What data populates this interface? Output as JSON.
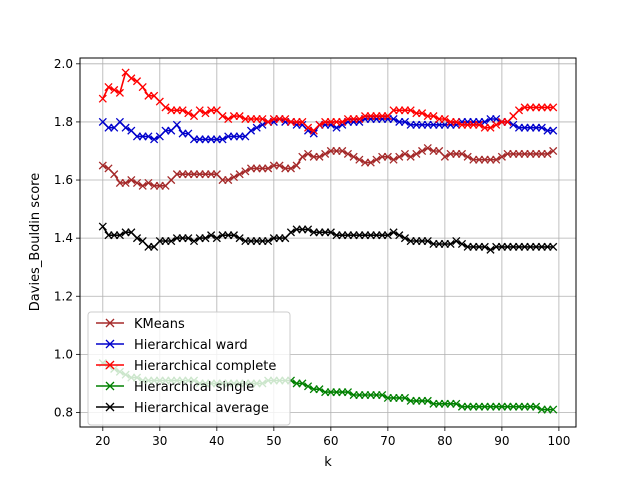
{
  "chart_data": {
    "type": "line",
    "title": "",
    "xlabel": "k",
    "ylabel": "Davies_Bouldin score",
    "xlim": [
      16,
      103
    ],
    "ylim": [
      0.75,
      2.02
    ],
    "xticks": [
      20,
      30,
      40,
      50,
      60,
      70,
      80,
      90,
      100
    ],
    "yticks": [
      0.8,
      1.0,
      1.2,
      1.4,
      1.6,
      1.8,
      2.0
    ],
    "xtick_labels": [
      "20",
      "30",
      "40",
      "50",
      "60",
      "70",
      "80",
      "90",
      "100"
    ],
    "ytick_labels": [
      "0.8",
      "1.0",
      "1.2",
      "1.4",
      "1.6",
      "1.8",
      "2.0"
    ],
    "grid": true,
    "marker": "x",
    "legend_position": "lower-left",
    "x_start": 20,
    "x_end": 99,
    "series": [
      {
        "name": "KMeans",
        "color": "#a52a2a",
        "values": [
          1.65,
          1.64,
          1.62,
          1.59,
          1.59,
          1.6,
          1.59,
          1.58,
          1.59,
          1.58,
          1.58,
          1.58,
          1.6,
          1.62,
          1.62,
          1.62,
          1.62,
          1.62,
          1.62,
          1.62,
          1.62,
          1.6,
          1.6,
          1.61,
          1.62,
          1.63,
          1.64,
          1.64,
          1.64,
          1.64,
          1.65,
          1.65,
          1.64,
          1.64,
          1.65,
          1.68,
          1.69,
          1.68,
          1.68,
          1.69,
          1.7,
          1.7,
          1.7,
          1.69,
          1.68,
          1.67,
          1.66,
          1.66,
          1.67,
          1.68,
          1.68,
          1.67,
          1.68,
          1.69,
          1.68,
          1.69,
          1.7,
          1.71,
          1.7,
          1.7,
          1.68,
          1.69,
          1.69,
          1.69,
          1.68,
          1.67,
          1.67,
          1.67,
          1.67,
          1.67,
          1.68,
          1.69,
          1.69,
          1.69,
          1.69,
          1.69,
          1.69,
          1.69,
          1.69,
          1.7
        ]
      },
      {
        "name": "Hierarchical ward",
        "color": "#0000cc",
        "values": [
          1.8,
          1.78,
          1.78,
          1.8,
          1.78,
          1.77,
          1.75,
          1.75,
          1.75,
          1.74,
          1.75,
          1.77,
          1.77,
          1.79,
          1.76,
          1.76,
          1.74,
          1.74,
          1.74,
          1.74,
          1.74,
          1.74,
          1.75,
          1.75,
          1.75,
          1.75,
          1.77,
          1.78,
          1.79,
          1.8,
          1.8,
          1.81,
          1.8,
          1.8,
          1.79,
          1.79,
          1.77,
          1.76,
          1.79,
          1.79,
          1.79,
          1.78,
          1.79,
          1.8,
          1.8,
          1.8,
          1.81,
          1.81,
          1.81,
          1.81,
          1.81,
          1.81,
          1.8,
          1.8,
          1.79,
          1.79,
          1.79,
          1.79,
          1.79,
          1.79,
          1.79,
          1.79,
          1.79,
          1.8,
          1.8,
          1.8,
          1.8,
          1.8,
          1.81,
          1.81,
          1.8,
          1.8,
          1.79,
          1.78,
          1.78,
          1.78,
          1.78,
          1.78,
          1.77,
          1.77
        ]
      },
      {
        "name": "Hierarchical complete",
        "color": "#ff0000",
        "values": [
          1.88,
          1.92,
          1.91,
          1.9,
          1.97,
          1.95,
          1.94,
          1.92,
          1.89,
          1.89,
          1.87,
          1.85,
          1.84,
          1.84,
          1.84,
          1.83,
          1.82,
          1.84,
          1.83,
          1.84,
          1.84,
          1.82,
          1.81,
          1.82,
          1.82,
          1.81,
          1.81,
          1.81,
          1.81,
          1.8,
          1.81,
          1.81,
          1.81,
          1.8,
          1.8,
          1.8,
          1.78,
          1.77,
          1.79,
          1.8,
          1.8,
          1.8,
          1.8,
          1.81,
          1.81,
          1.81,
          1.82,
          1.82,
          1.82,
          1.82,
          1.82,
          1.84,
          1.84,
          1.84,
          1.84,
          1.83,
          1.83,
          1.82,
          1.82,
          1.81,
          1.81,
          1.8,
          1.8,
          1.79,
          1.79,
          1.79,
          1.79,
          1.78,
          1.78,
          1.79,
          1.8,
          1.8,
          1.82,
          1.84,
          1.85,
          1.85,
          1.85,
          1.85,
          1.85,
          1.85
        ]
      },
      {
        "name": "Hierarchical single",
        "color": "#008000",
        "values": [
          0.97,
          0.96,
          0.95,
          0.94,
          0.93,
          0.92,
          0.92,
          0.91,
          0.91,
          0.91,
          0.91,
          0.91,
          0.91,
          0.91,
          0.91,
          0.91,
          0.91,
          0.9,
          0.9,
          0.9,
          0.9,
          0.9,
          0.9,
          0.9,
          0.9,
          0.9,
          0.9,
          0.9,
          0.9,
          0.91,
          0.91,
          0.91,
          0.91,
          0.91,
          0.9,
          0.9,
          0.89,
          0.88,
          0.88,
          0.87,
          0.87,
          0.87,
          0.87,
          0.87,
          0.86,
          0.86,
          0.86,
          0.86,
          0.86,
          0.86,
          0.85,
          0.85,
          0.85,
          0.85,
          0.84,
          0.84,
          0.84,
          0.84,
          0.83,
          0.83,
          0.83,
          0.83,
          0.83,
          0.82,
          0.82,
          0.82,
          0.82,
          0.82,
          0.82,
          0.82,
          0.82,
          0.82,
          0.82,
          0.82,
          0.82,
          0.82,
          0.82,
          0.81,
          0.81,
          0.81
        ]
      },
      {
        "name": "Hierarchical average",
        "color": "#000000",
        "values": [
          1.44,
          1.41,
          1.41,
          1.41,
          1.42,
          1.42,
          1.4,
          1.39,
          1.37,
          1.37,
          1.39,
          1.39,
          1.39,
          1.4,
          1.4,
          1.4,
          1.39,
          1.4,
          1.4,
          1.41,
          1.4,
          1.41,
          1.41,
          1.41,
          1.4,
          1.39,
          1.39,
          1.39,
          1.39,
          1.39,
          1.4,
          1.4,
          1.4,
          1.42,
          1.43,
          1.43,
          1.43,
          1.42,
          1.42,
          1.42,
          1.42,
          1.41,
          1.41,
          1.41,
          1.41,
          1.41,
          1.41,
          1.41,
          1.41,
          1.41,
          1.41,
          1.42,
          1.41,
          1.4,
          1.39,
          1.39,
          1.39,
          1.39,
          1.38,
          1.38,
          1.38,
          1.38,
          1.39,
          1.38,
          1.37,
          1.37,
          1.37,
          1.37,
          1.36,
          1.37,
          1.37,
          1.37,
          1.37,
          1.37,
          1.37,
          1.37,
          1.37,
          1.37,
          1.37,
          1.37
        ]
      }
    ]
  }
}
